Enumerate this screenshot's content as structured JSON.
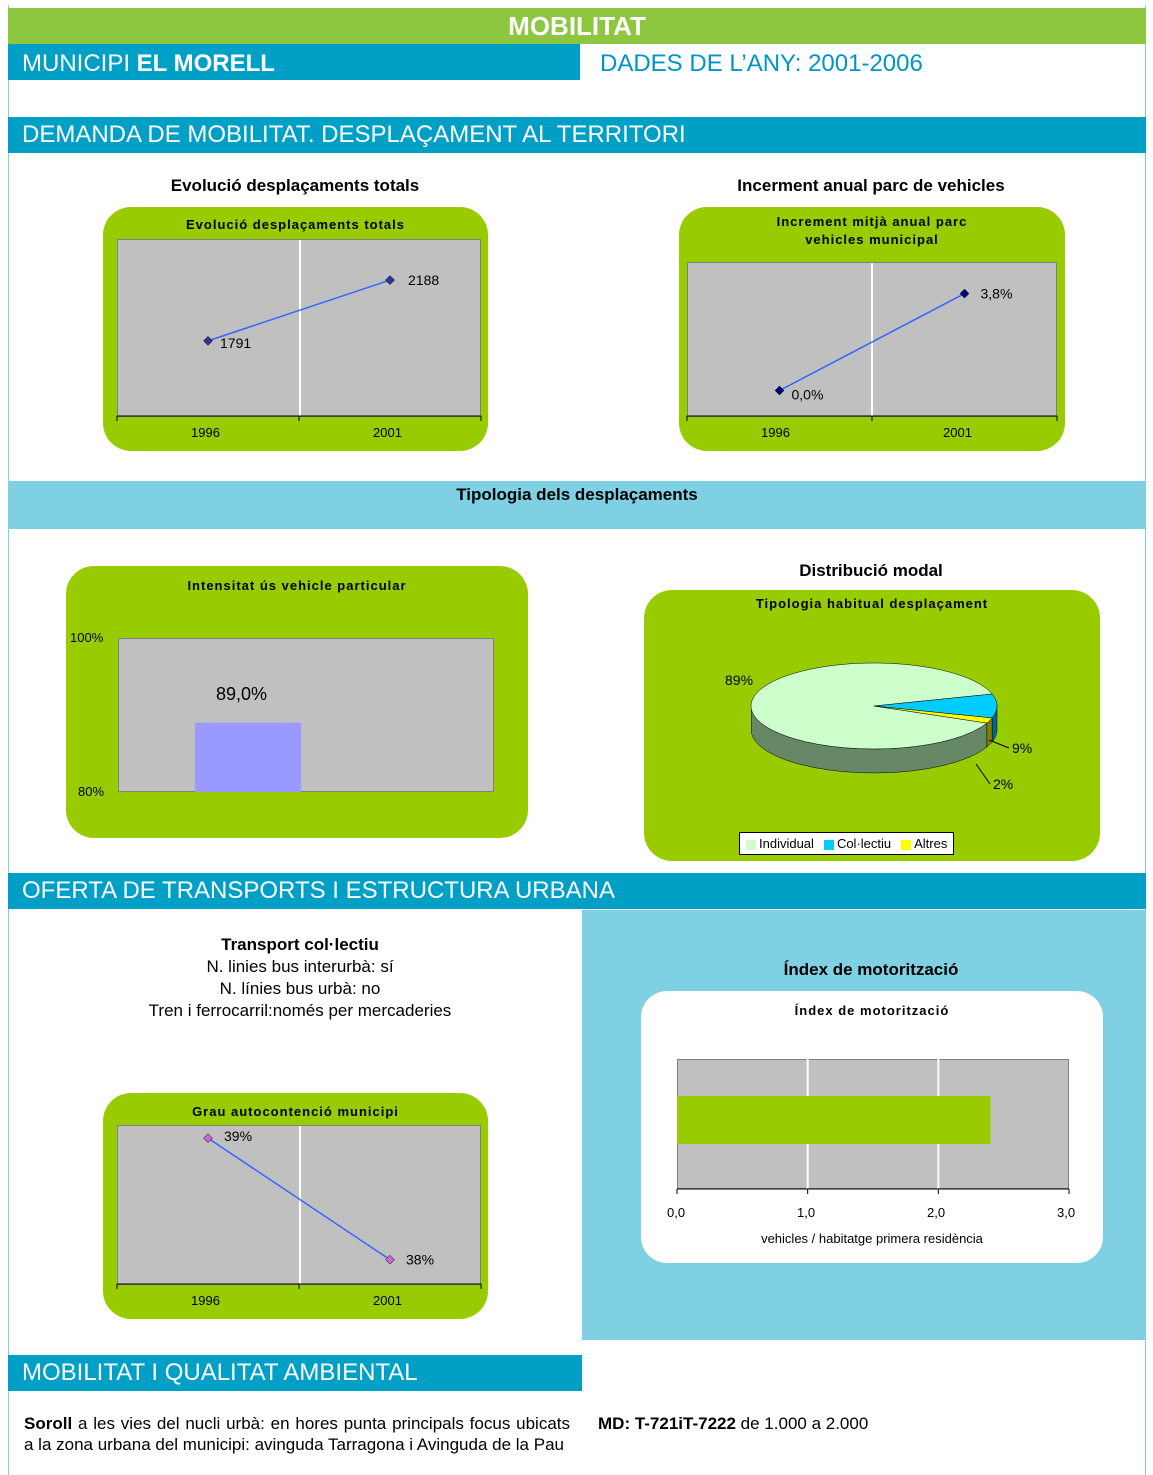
{
  "header": {
    "title": "MOBILITAT",
    "municipi_prefix": "MUNICIPI ",
    "municipi_name": "EL MORELL",
    "dades": "DADES DE L’ANY: 2001-2006"
  },
  "sections": {
    "demanda": "DEMANDA DE MOBILITAT. DESPLAÇAMENT AL TERRITORI",
    "oferta": "OFERTA DE TRANSPORTS I ESTRUCTURA URBANA",
    "qualitat": "MOBILITAT I QUALITAT AMBIENTAL"
  },
  "tipologia_strip": "Tipologia dels desplaçaments",
  "chart_data": [
    {
      "id": "desplacaments",
      "type": "line",
      "title": "Evolució desplaçaments totals",
      "outer_title": "Evolució desplaçaments totals",
      "categories": [
        "1996",
        "2001"
      ],
      "values": [
        1791,
        2188
      ],
      "labels": [
        "1791",
        "2188"
      ],
      "colors": {
        "line": "#3366ff",
        "marker": "#333399"
      }
    },
    {
      "id": "parc",
      "type": "line",
      "title": "Increment mitjà anual parc vehicles municipal",
      "outer_title": "Incerment anual parc de vehicles",
      "categories": [
        "1996",
        "2001"
      ],
      "values": [
        0.0,
        3.8
      ],
      "labels": [
        "0,0%",
        "3,8%"
      ],
      "colors": {
        "line": "#3366ff",
        "marker": "#000080"
      }
    },
    {
      "id": "intensitat",
      "type": "bar",
      "title": "Intensitat ús vehicle particular",
      "categories": [
        ""
      ],
      "values": [
        89.0
      ],
      "label": "89,0%",
      "ylim": [
        80,
        100
      ],
      "yticks": [
        "100%",
        "80%"
      ],
      "colors": {
        "bar": "#9999ff"
      }
    },
    {
      "id": "distribucio",
      "type": "pie",
      "title": "Tipologia habitual desplaçament",
      "outer_title": "Distribució modal",
      "categories": [
        "Individual",
        "Col·lectiu",
        "Altres"
      ],
      "values": [
        89,
        9,
        2
      ],
      "labels": [
        "89%",
        "9%",
        "2%"
      ],
      "colors": [
        "#ccffcc",
        "#00ccff",
        "#ffff00"
      ]
    },
    {
      "id": "autocontencio",
      "type": "line",
      "title": "Grau autocontenció municipi",
      "categories": [
        "1996",
        "2001"
      ],
      "values": [
        39,
        38
      ],
      "labels": [
        "39%",
        "38%"
      ],
      "colors": {
        "line": "#3366ff",
        "marker": "#cc66cc"
      }
    },
    {
      "id": "motoritzacio",
      "type": "bar",
      "orientation": "horizontal",
      "title": "Índex de motorització",
      "outer_title": "Índex de motorització",
      "values": [
        2.4
      ],
      "xlim": [
        0,
        3
      ],
      "xticks": [
        "0,0",
        "1,0",
        "2,0",
        "3,0"
      ],
      "xlabel": "vehicles / habitatge primera residència",
      "colors": {
        "bar": "#99cc00"
      }
    }
  ],
  "transport": {
    "title": "Transport col·lectiu",
    "line1": "N. linies bus interurbà: sí",
    "line2": "N. línies bus urbà: no",
    "line3": "Tren i ferrocarril:només per mercaderies"
  },
  "qualitat_text": {
    "soroll_bold": "Soroll",
    "soroll_rest": " a les vies del nucli urbà: en hores punta principals focus ubicats a la zona urbana del municipi: avinguda Tarragona i Avinguda de la Pau",
    "md_bold": "MD: T-721iT-7222",
    "md_rest": " de 1.000 a 2.000"
  }
}
